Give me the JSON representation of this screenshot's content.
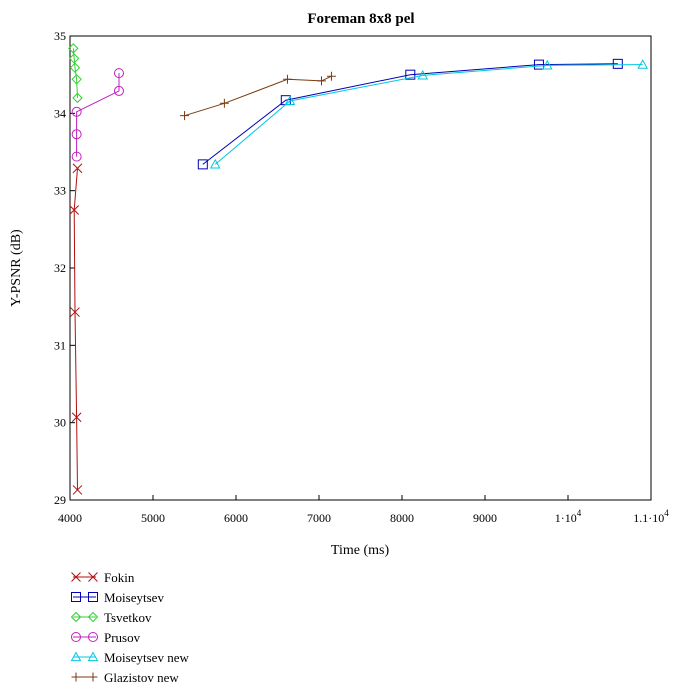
{
  "chart_data": {
    "type": "line",
    "title": "Foreman 8x8 pel",
    "xlabel": "Time (ms)",
    "ylabel": "Y-PSNR (dB)",
    "xlim": [
      4000,
      11000
    ],
    "ylim": [
      29,
      35
    ],
    "x_ticks": [
      {
        "value": 4000,
        "label": "4000"
      },
      {
        "value": 5000,
        "label": "5000"
      },
      {
        "value": 6000,
        "label": "6000"
      },
      {
        "value": 7000,
        "label": "7000"
      },
      {
        "value": 8000,
        "label": "8000"
      },
      {
        "value": 9000,
        "label": "9000"
      },
      {
        "value": 10000,
        "label": "1·10",
        "exp": "4"
      },
      {
        "value": 11000,
        "label": "1.1·10",
        "exp": "4"
      }
    ],
    "y_ticks": [
      29,
      30,
      31,
      32,
      33,
      34,
      35
    ],
    "grid": false,
    "legend_position": "bottom-left",
    "series": [
      {
        "name": "Fokin",
        "color": "#b01010",
        "marker": "x",
        "points": [
          [
            4090,
            29.13
          ],
          [
            4080,
            30.07
          ],
          [
            4060,
            31.43
          ],
          [
            4050,
            32.75
          ],
          [
            4090,
            33.29
          ]
        ]
      },
      {
        "name": "Moiseytsev",
        "color": "#0000b4",
        "marker": "square",
        "points": [
          [
            5600,
            33.34
          ],
          [
            6600,
            34.17
          ],
          [
            8100,
            34.5
          ],
          [
            9650,
            34.63
          ],
          [
            10600,
            34.64
          ]
        ]
      },
      {
        "name": "Tsvetkov",
        "color": "#30d030",
        "marker": "diamond",
        "points": [
          [
            4090,
            34.2
          ],
          [
            4080,
            34.44
          ],
          [
            4060,
            34.59
          ],
          [
            4050,
            34.71
          ],
          [
            4040,
            34.84
          ]
        ]
      },
      {
        "name": "Prusov",
        "color": "#c020c0",
        "marker": "circle",
        "points": [
          [
            4080,
            33.44
          ],
          [
            4080,
            33.73
          ],
          [
            4080,
            34.02
          ],
          [
            4590,
            34.29
          ],
          [
            4590,
            34.52
          ]
        ]
      },
      {
        "name": "Moiseytsev new",
        "color": "#00c8e0",
        "marker": "triangle",
        "points": [
          [
            5750,
            33.34
          ],
          [
            6650,
            34.16
          ],
          [
            8250,
            34.49
          ],
          [
            9750,
            34.62
          ],
          [
            10900,
            34.63
          ]
        ]
      },
      {
        "name": "Glazistov new",
        "color": "#7a3a10",
        "marker": "plus",
        "points": [
          [
            5380,
            33.97
          ],
          [
            5860,
            34.13
          ],
          [
            6620,
            34.44
          ],
          [
            7030,
            34.42
          ],
          [
            7150,
            34.48
          ]
        ]
      }
    ]
  }
}
